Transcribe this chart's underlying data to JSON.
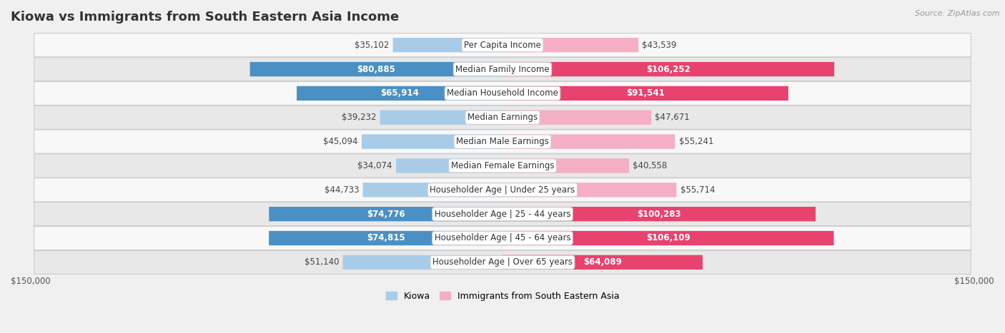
{
  "title": "Kiowa vs Immigrants from South Eastern Asia Income",
  "source": "Source: ZipAtlas.com",
  "categories": [
    "Per Capita Income",
    "Median Family Income",
    "Median Household Income",
    "Median Earnings",
    "Median Male Earnings",
    "Median Female Earnings",
    "Householder Age | Under 25 years",
    "Householder Age | 25 - 44 years",
    "Householder Age | 45 - 64 years",
    "Householder Age | Over 65 years"
  ],
  "kiowa_values": [
    35102,
    80885,
    65914,
    39232,
    45094,
    34074,
    44733,
    74776,
    74815,
    51140
  ],
  "immigrant_values": [
    43539,
    106252,
    91541,
    47671,
    55241,
    40558,
    55714,
    100283,
    106109,
    64089
  ],
  "kiowa_labels": [
    "$35,102",
    "$80,885",
    "$65,914",
    "$39,232",
    "$45,094",
    "$34,074",
    "$44,733",
    "$74,776",
    "$74,815",
    "$51,140"
  ],
  "immigrant_labels": [
    "$43,539",
    "$106,252",
    "$91,541",
    "$47,671",
    "$55,241",
    "$40,558",
    "$55,714",
    "$100,283",
    "$106,109",
    "$64,089"
  ],
  "kiowa_light_color": "#a8cce8",
  "kiowa_dark_color": "#4a90c4",
  "immigrant_light_color": "#f4afc4",
  "immigrant_dark_color": "#e8426e",
  "kiowa_threshold": 60000,
  "immigrant_threshold": 60000,
  "max_value": 150000,
  "xlabel_left": "$150,000",
  "xlabel_right": "$150,000",
  "legend_kiowa": "Kiowa",
  "legend_immigrant": "Immigrants from South Eastern Asia",
  "background_color": "#f0f0f0",
  "row_light": "#f8f8f8",
  "row_dark": "#e8e8e8",
  "bar_height": 0.6,
  "title_fontsize": 13,
  "label_fontsize": 8.5,
  "category_fontsize": 8.5
}
